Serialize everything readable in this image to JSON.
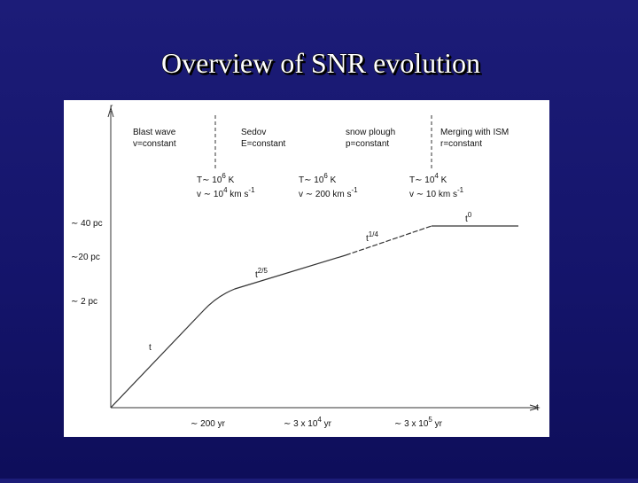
{
  "title": "Overview of SNR evolution",
  "axes": {
    "y": "r",
    "x": "t"
  },
  "phases": [
    {
      "name": "Blast wave",
      "condition": "v=constant"
    },
    {
      "name": "Sedov",
      "condition": "E=constant"
    },
    {
      "name": "snow plough",
      "condition": "p=constant"
    },
    {
      "name": "Merging with ISM",
      "condition": "r=constant"
    }
  ],
  "estimates": [
    [
      [
        {
          "text": "T∼ 10"
        },
        {
          "sup": "6"
        },
        {
          "text": " K"
        }
      ],
      [
        {
          "text": "v ∼ 10"
        },
        {
          "sup": "4"
        },
        {
          "text": " km s"
        },
        {
          "sup": "-1"
        }
      ]
    ],
    [
      [
        {
          "text": "T∼ 10"
        },
        {
          "sup": "6"
        },
        {
          "text": " K"
        }
      ],
      [
        {
          "text": "v ∼ 200 km s"
        },
        {
          "sup": "-1"
        }
      ]
    ],
    [
      [
        {
          "text": "T∼ 10"
        },
        {
          "sup": "4"
        },
        {
          "text": " K"
        }
      ],
      [
        {
          "text": "v ∼ 10  km s"
        },
        {
          "sup": "-1"
        }
      ]
    ]
  ],
  "y_labels": [
    "∼ 40 pc",
    "∼20 pc",
    "∼ 2 pc"
  ],
  "x_labels": [
    [
      {
        "text": "∼ 200 yr"
      }
    ],
    [
      {
        "text": "∼ 3 x 10"
      },
      {
        "sup": "4"
      },
      {
        "text": " yr"
      }
    ],
    [
      {
        "text": "∼ 3 x 10"
      },
      {
        "sup": "5"
      },
      {
        "text": " yr"
      }
    ]
  ],
  "curve_labels": [
    [
      {
        "text": "t"
      }
    ],
    [
      {
        "text": "t"
      },
      {
        "sup": "2/5"
      }
    ],
    [
      {
        "text": "t"
      },
      {
        "sup": "1/4"
      }
    ],
    [
      {
        "text": "t"
      },
      {
        "sup": "0"
      }
    ]
  ]
}
